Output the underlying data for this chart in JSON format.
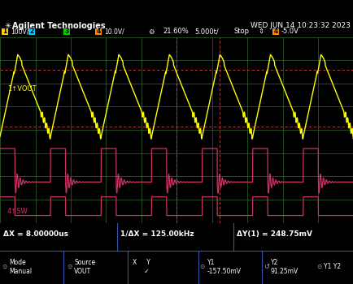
{
  "bg_color": "#000000",
  "header_color": "#5b7fa6",
  "grid_color": "#336633",
  "grid_dashed_color": "#cc4444",
  "yellow_color": "#ffff00",
  "pink_color": "#cc3366",
  "title_left": "Agilent Technologies",
  "title_right": "WED JUN 14 10:23:32 2023",
  "header_text": "1  100V/    2              3              4  10.0V/  ★  21.60%  5.000t/   Stop   ↕   4   -5.0V",
  "label_vout": "1↑VOUT",
  "label_sw": "4↑SW",
  "bottom_left": "ΔX = 8.00000us",
  "bottom_mid": "1/ΔX = 125.00kHz",
  "bottom_right": "ΔY(1) = 248.75mV",
  "bottom_row2": "Mode Manual    Source VOUT    X  Y  ✓    ⊙ Y1 -157.50mV    ↺ Y2 91.25mV    ⊙ Y1 Y2",
  "n_cycles": 7,
  "period": 8.0,
  "duty_cycle": 0.35
}
